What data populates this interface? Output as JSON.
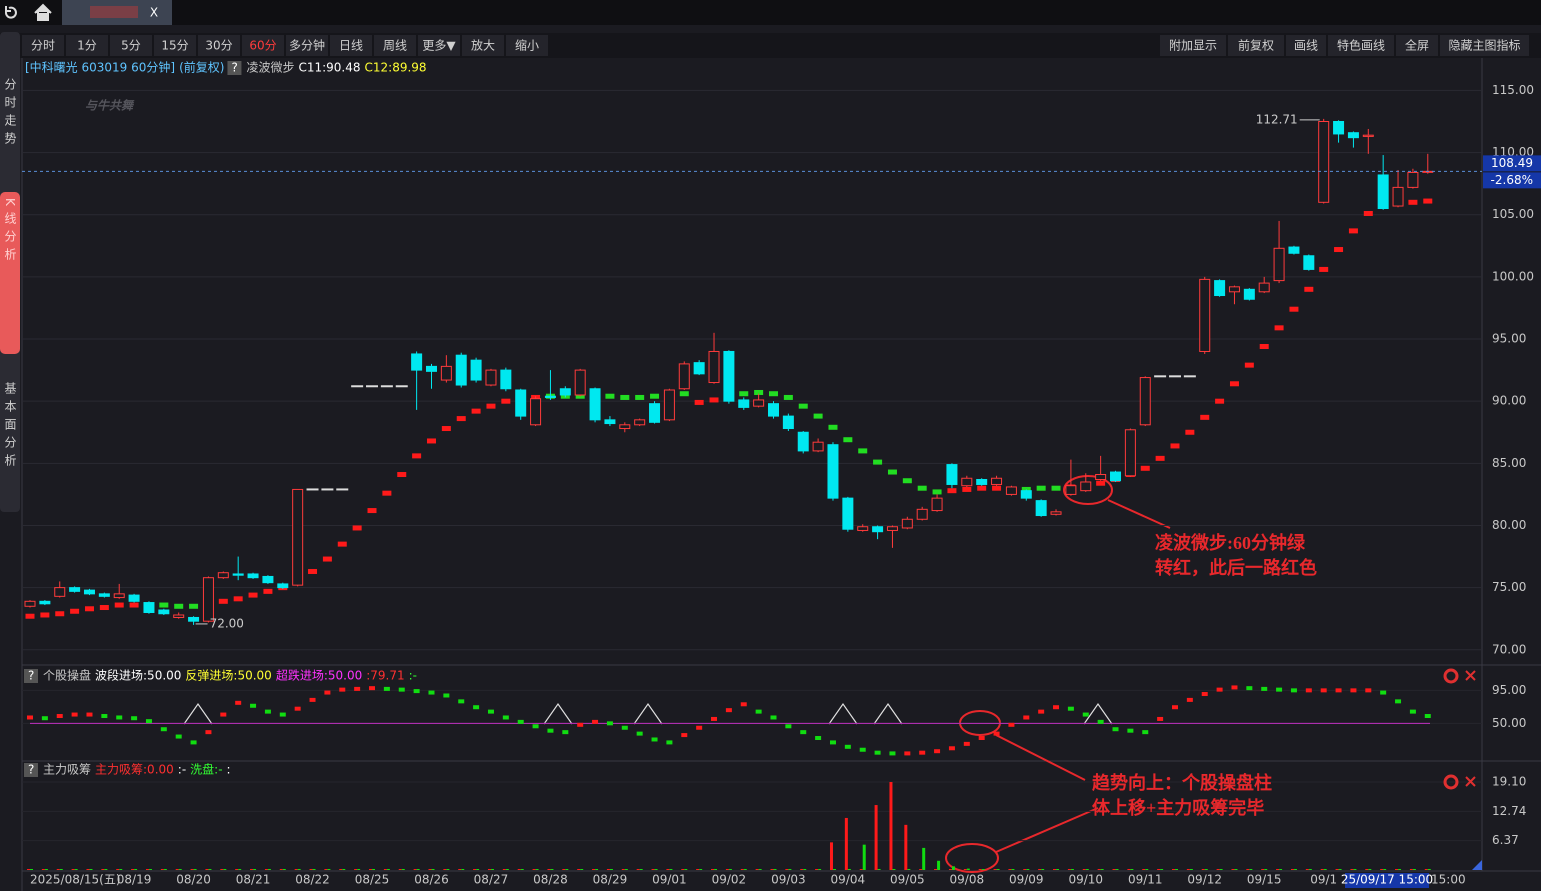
{
  "ui": {
    "tab_close": "X",
    "toolbar_left": [
      "分时",
      "1分",
      "5分",
      "15分",
      "30分",
      "60分",
      "多分钟",
      "日线",
      "周线",
      "更多▼",
      "放大",
      "缩小"
    ],
    "toolbar_active": 5,
    "active_color": "#ff3b3b",
    "toolbar_right": [
      "附加显示",
      "前复权",
      "画线",
      "特色画线",
      "全屏",
      "隐藏主图指标"
    ],
    "sidebar": [
      "分时走势",
      "K线分析",
      "基本面分析"
    ],
    "sidebar_active": 1,
    "logo": "与牛共舞",
    "crosshair_time": "25/09/17 15:00",
    "x_end_label": "15:00"
  },
  "annotations": [
    {
      "lines": [
        "凌波微步:60分钟绿",
        "转红，此后一路红色"
      ]
    },
    {
      "lines": [
        "趋势向上：个股操盘柱",
        "体上移+主力吸筹完毕"
      ]
    }
  ],
  "chart_data": [
    {
      "type": "candlestick",
      "title": "[中科曙光 603019 60分钟]",
      "subtitle": "(前复权)",
      "help": "?",
      "indicator": "凌波微步",
      "indicator_values": [
        {
          "text": "C11:90.48",
          "color": "#ffffff"
        },
        {
          "text": "C12:89.98",
          "color": "#ffff33"
        }
      ],
      "categories": [
        "2025/08/15(五)",
        null,
        null,
        null,
        null,
        null,
        null,
        "08/19",
        null,
        null,
        null,
        "08/20",
        null,
        null,
        null,
        "08/21",
        null,
        null,
        null,
        "08/22",
        null,
        null,
        null,
        "08/25",
        null,
        null,
        null,
        "08/26",
        null,
        null,
        null,
        "08/27",
        null,
        null,
        null,
        "08/28",
        null,
        null,
        null,
        "08/29",
        null,
        null,
        null,
        "09/01",
        null,
        null,
        null,
        "09/02",
        null,
        null,
        null,
        "09/03",
        null,
        null,
        null,
        "09/04",
        null,
        null,
        null,
        "09/05",
        null,
        null,
        null,
        "09/08",
        null,
        null,
        null,
        "09/09",
        null,
        null,
        null,
        "09/10",
        null,
        null,
        null,
        "09/11",
        null,
        null,
        null,
        "09/12",
        null,
        null,
        null,
        "09/15",
        null,
        null,
        null,
        "09/1",
        null,
        null,
        null,
        null,
        null,
        null,
        null
      ],
      "open": [
        73.5,
        73.9,
        74.3,
        75.0,
        74.8,
        74.5,
        74.2,
        74.4,
        73.8,
        73.2,
        72.6,
        72.6,
        72.3,
        75.8,
        76.1,
        76.1,
        75.9,
        75.3,
        75.2,
        82.9,
        82.9,
        82.9,
        91.2,
        91.2,
        91.2,
        91.2,
        93.8,
        92.8,
        91.7,
        93.7,
        93.3,
        91.3,
        92.5,
        90.9,
        88.1,
        90.4,
        91.0,
        90.5,
        91.0,
        88.5,
        87.8,
        88.1,
        89.8,
        88.5,
        91.0,
        93.1,
        91.5,
        94.0,
        90.1,
        89.6,
        89.8,
        88.8,
        87.5,
        86.0,
        86.5,
        82.2,
        79.6,
        79.9,
        79.6,
        79.8,
        80.5,
        81.2,
        84.9,
        83.2,
        83.7,
        83.3,
        82.5,
        82.8,
        82.0,
        80.9,
        82.5,
        82.8,
        83.7,
        84.3,
        84.0,
        88.1,
        92.0,
        92.0,
        92.0,
        94.0,
        99.7,
        98.8,
        99.0,
        98.8,
        99.7,
        102.4,
        101.7,
        106.0,
        112.5,
        111.6,
        111.3,
        108.2,
        105.7,
        107.2,
        108.45
      ],
      "high": [
        74.0,
        74.0,
        75.5,
        75.1,
        74.9,
        74.6,
        75.3,
        74.5,
        73.9,
        73.3,
        73.0,
        72.7,
        75.9,
        76.3,
        77.5,
        76.2,
        76.0,
        75.4,
        82.9,
        82.9,
        82.9,
        82.9,
        91.2,
        91.2,
        91.2,
        91.2,
        94.0,
        93.0,
        93.7,
        93.9,
        93.5,
        92.6,
        92.7,
        91.0,
        90.4,
        92.5,
        91.2,
        92.6,
        91.1,
        88.8,
        88.3,
        88.6,
        90.0,
        91.0,
        93.2,
        93.3,
        95.5,
        94.1,
        90.3,
        90.6,
        90.0,
        89.0,
        87.6,
        87.0,
        86.7,
        82.3,
        80.1,
        80.0,
        80.0,
        80.7,
        81.5,
        82.5,
        85.0,
        84.0,
        83.8,
        84.0,
        83.2,
        82.9,
        82.1,
        81.3,
        85.3,
        84.2,
        85.6,
        84.4,
        87.8,
        92.0,
        92.0,
        92.0,
        92.0,
        100.0,
        99.8,
        99.3,
        99.1,
        100.0,
        104.5,
        102.5,
        101.8,
        112.71,
        112.6,
        111.7,
        111.9,
        109.8,
        108.6,
        108.7,
        109.9
      ],
      "low": [
        73.4,
        73.6,
        74.2,
        74.6,
        74.4,
        74.2,
        74.1,
        73.8,
        72.9,
        72.8,
        72.5,
        72.0,
        72.2,
        75.7,
        75.6,
        75.7,
        75.3,
        74.9,
        75.1,
        82.9,
        82.9,
        82.9,
        91.2,
        91.2,
        91.2,
        91.2,
        89.3,
        91.0,
        91.5,
        91.1,
        91.5,
        91.2,
        90.8,
        88.5,
        88.0,
        90.1,
        90.3,
        90.4,
        88.3,
        88.0,
        87.5,
        88.0,
        88.2,
        88.4,
        90.9,
        92.1,
        91.4,
        89.8,
        89.3,
        89.5,
        88.6,
        87.6,
        85.8,
        85.9,
        82.0,
        79.5,
        79.5,
        78.9,
        78.2,
        79.7,
        80.4,
        81.1,
        83.0,
        83.1,
        83.2,
        83.2,
        82.4,
        82.0,
        80.7,
        80.8,
        82.4,
        82.7,
        83.6,
        83.5,
        83.9,
        88.0,
        92.0,
        92.0,
        92.0,
        93.8,
        98.4,
        97.8,
        98.1,
        98.7,
        99.5,
        101.8,
        100.5,
        105.9,
        110.8,
        110.4,
        109.9,
        105.4,
        105.6,
        107.1,
        108.3
      ],
      "close": [
        73.9,
        73.7,
        75.0,
        74.7,
        74.5,
        74.3,
        74.5,
        73.9,
        73.0,
        72.9,
        72.8,
        72.3,
        75.8,
        76.2,
        76.0,
        75.8,
        75.4,
        75.0,
        82.9,
        82.9,
        82.9,
        82.9,
        91.2,
        91.2,
        91.2,
        91.2,
        92.5,
        92.4,
        92.8,
        91.3,
        91.7,
        92.5,
        91.0,
        88.8,
        90.2,
        90.3,
        90.5,
        92.5,
        88.5,
        88.2,
        88.1,
        88.5,
        88.3,
        90.9,
        93.0,
        92.2,
        94.0,
        90.0,
        89.5,
        90.1,
        88.8,
        87.8,
        86.0,
        86.7,
        82.2,
        79.7,
        79.9,
        79.5,
        79.9,
        80.5,
        81.3,
        82.2,
        83.3,
        83.8,
        83.3,
        83.8,
        83.1,
        82.2,
        80.8,
        81.1,
        83.2,
        83.5,
        84.1,
        83.6,
        87.7,
        91.9,
        92.0,
        92.0,
        92.0,
        99.8,
        98.5,
        99.2,
        98.2,
        99.5,
        102.3,
        101.9,
        100.6,
        112.5,
        111.5,
        111.2,
        111.4,
        105.5,
        107.2,
        108.4,
        108.49
      ],
      "up_color": "#ff3b3b",
      "down_color": "#00e8f0",
      "flat_color": "#dddddd",
      "step_values": [
        72.7,
        72.8,
        72.9,
        73.1,
        73.3,
        73.4,
        73.6,
        73.6,
        73.6,
        73.6,
        73.5,
        73.5,
        73.7,
        73.9,
        74.1,
        74.4,
        74.7,
        75.0,
        75.6,
        76.3,
        77.3,
        78.5,
        79.8,
        81.2,
        82.6,
        84.1,
        85.6,
        86.8,
        87.8,
        88.6,
        89.2,
        89.6,
        90.0,
        90.2,
        90.3,
        90.4,
        90.4,
        90.4,
        90.5,
        90.4,
        90.3,
        90.3,
        90.4,
        90.5,
        90.6,
        89.9,
        90.1,
        90.3,
        90.6,
        90.7,
        90.6,
        90.3,
        89.6,
        88.8,
        87.9,
        86.9,
        86.0,
        85.1,
        84.3,
        83.6,
        83.0,
        82.7,
        82.8,
        82.9,
        83.0,
        83.0,
        82.8,
        82.9,
        83.0,
        83.0,
        83.1,
        83.2,
        83.4,
        83.7,
        84.1,
        84.6,
        85.4,
        86.4,
        87.5,
        88.7,
        90.0,
        91.4,
        92.9,
        94.4,
        95.9,
        97.4,
        99.0,
        100.6,
        102.2,
        103.7,
        105.1,
        105.7,
        105.9,
        106.0,
        106.1
      ],
      "step_colors": [
        "#ff1a1a",
        "#ff1a1a",
        "#ff1a1a",
        "#ff1a1a",
        "#ff1a1a",
        "#ff1a1a",
        "#ff1a1a",
        "#ff1a1a",
        "#22dd22",
        "#22dd22",
        "#22dd22",
        "#22dd22",
        "#ff1a1a",
        "#ff1a1a",
        "#ff1a1a",
        "#ff1a1a",
        "#ff1a1a",
        "#ff1a1a",
        "#ff1a1a",
        "#ff1a1a",
        "#ff1a1a",
        "#ff1a1a",
        "#ff1a1a",
        "#ff1a1a",
        "#ff1a1a",
        "#ff1a1a",
        "#ff1a1a",
        "#ff1a1a",
        "#ff1a1a",
        "#ff1a1a",
        "#ff1a1a",
        "#ff1a1a",
        "#ff1a1a",
        "#ff1a1a",
        "#ff1a1a",
        "#22dd22",
        "#22dd22",
        "#22dd22",
        "#22dd22",
        "#22dd22",
        "#22dd22",
        "#22dd22",
        "#22dd22",
        "#22dd22",
        "#22dd22",
        "#ff1a1a",
        "#ff1a1a",
        "#ff1a1a",
        "#22dd22",
        "#22dd22",
        "#22dd22",
        "#22dd22",
        "#22dd22",
        "#22dd22",
        "#22dd22",
        "#22dd22",
        "#22dd22",
        "#22dd22",
        "#22dd22",
        "#22dd22",
        "#22dd22",
        "#22dd22",
        "#ff1a1a",
        "#ff1a1a",
        "#ff1a1a",
        "#ff1a1a",
        "#ff1a1a",
        "#22dd22",
        "#22dd22",
        "#22dd22",
        "#ff1a1a",
        "#ff1a1a",
        "#ff1a1a",
        "#ff1a1a",
        "#ff1a1a",
        "#ff1a1a",
        "#ff1a1a",
        "#ff1a1a",
        "#ff1a1a",
        "#ff1a1a",
        "#ff1a1a",
        "#ff1a1a",
        "#ff1a1a",
        "#ff1a1a",
        "#ff1a1a",
        "#ff1a1a",
        "#ff1a1a",
        "#ff1a1a",
        "#ff1a1a",
        "#ff1a1a",
        "#ff1a1a",
        "#ff1a1a",
        "#ff1a1a",
        "#ff1a1a",
        "#ff1a1a"
      ],
      "ylim": [
        69.5,
        116
      ],
      "yticks": [
        {
          "value": 70,
          "label": "70.00"
        },
        {
          "value": 75,
          "label": "75.00"
        },
        {
          "value": 80,
          "label": "80.00"
        },
        {
          "value": 85,
          "label": "85.00"
        },
        {
          "value": 90,
          "label": "90.00"
        },
        {
          "value": 95,
          "label": "95.00"
        },
        {
          "value": 100,
          "label": "100.00"
        },
        {
          "value": 105,
          "label": "105.00"
        },
        {
          "value": 110,
          "label": "110.00"
        },
        {
          "value": 115,
          "label": "115.00"
        }
      ],
      "grid": true,
      "high_marker": {
        "value": 112.71,
        "label": "112.71"
      },
      "low_marker": {
        "value": 72.0,
        "label": "72.00"
      },
      "last_price": {
        "value": 108.49,
        "label": "108.49"
      },
      "change_label": "-2.68%"
    },
    {
      "type": "dots",
      "title": "个股操盘",
      "help": "?",
      "legend": [
        {
          "text": "波段进场:50.00",
          "color": "#ffffff"
        },
        {
          "text": "反弹进场:50.00",
          "color": "#ffff33"
        },
        {
          "text": "超跌进场:50.00",
          "color": "#ff33ff"
        },
        {
          "text": ":79.71",
          "color": "#ff3030"
        },
        {
          "text": ":-",
          "color": "#33ff33"
        }
      ],
      "values": [
        58,
        57,
        60,
        62,
        62,
        60,
        58,
        57,
        53,
        42,
        32,
        24,
        38,
        62,
        78,
        74,
        66,
        62,
        70,
        82,
        92,
        96,
        97,
        98,
        97,
        96,
        94,
        92,
        88,
        80,
        72,
        66,
        58,
        52,
        46,
        40,
        38,
        48,
        52,
        50,
        44,
        36,
        28,
        24,
        34,
        44,
        56,
        68,
        76,
        66,
        58,
        46,
        38,
        30,
        24,
        18,
        14,
        10,
        9,
        9,
        10,
        12,
        16,
        22,
        30,
        36,
        48,
        58,
        66,
        72,
        70,
        62,
        52,
        42,
        40,
        38,
        56,
        72,
        82,
        90,
        96,
        99,
        98,
        97,
        96,
        95,
        95,
        95,
        95,
        95,
        95,
        92,
        80,
        66,
        60
      ],
      "up_color": "#ff1a1a",
      "down_color": "#11dd11",
      "ylim": [
        0,
        125.5
      ],
      "yticks": [
        {
          "value": 50,
          "label": "50.00"
        },
        {
          "value": 95,
          "label": "95.00"
        }
      ],
      "ref_line": {
        "value": 50,
        "color": "#c030c0"
      }
    },
    {
      "type": "bars",
      "title": "主力吸筹",
      "help": "?",
      "legend": [
        {
          "text": "主力吸筹:0.00",
          "color": "#ff3030"
        },
        {
          "text": ":-",
          "color": "#ffffff"
        },
        {
          "text": "洗盘:-",
          "color": "#33ff33"
        },
        {
          "text": ":",
          "color": "#ffffff"
        }
      ],
      "red_values": [
        0,
        0,
        0,
        0,
        0,
        0,
        0,
        0,
        0,
        0,
        0,
        0,
        0,
        0,
        0,
        0,
        0,
        0,
        0,
        0,
        0,
        0,
        0,
        0,
        0,
        0,
        0,
        0,
        0,
        0,
        0,
        0,
        0,
        0,
        0,
        0,
        0,
        0,
        0,
        0,
        0,
        0,
        0,
        0,
        0,
        0,
        0,
        0,
        0,
        0,
        0,
        0,
        0,
        0,
        6.0,
        11.3,
        0,
        14.1,
        19.1,
        9.8,
        0,
        0,
        0,
        0,
        0,
        0,
        0,
        0,
        0,
        0,
        0,
        0,
        0,
        0,
        0,
        0,
        0,
        0,
        0,
        0,
        0,
        0,
        0,
        0,
        0,
        0,
        0,
        0,
        0,
        0,
        0,
        0,
        0,
        0,
        0
      ],
      "green_values": [
        0,
        0,
        0,
        0,
        0,
        0,
        0,
        0,
        0,
        0,
        0,
        0,
        0,
        0,
        0,
        0,
        0,
        0,
        0,
        0,
        0,
        0,
        0,
        0,
        0,
        0,
        0,
        0,
        0,
        0,
        0,
        0,
        0,
        0,
        0,
        0,
        0,
        0,
        0,
        0,
        0,
        0,
        0,
        0,
        0,
        0,
        0,
        0,
        0,
        0,
        0,
        0,
        0,
        0,
        0,
        0,
        5.5,
        0,
        0,
        0,
        4.8,
        2.0,
        0.8,
        0.3,
        0,
        0,
        0,
        0,
        0,
        0,
        0,
        0,
        0,
        0,
        0,
        0,
        0,
        0,
        0,
        0,
        0,
        0,
        0,
        0,
        0,
        0,
        0,
        0,
        0,
        0,
        0,
        0,
        0,
        0,
        0
      ],
      "red_color": "#ff1a1a",
      "green_color": "#11dd11",
      "ylim": [
        0,
        20.84
      ],
      "yticks": [
        6.37,
        12.74,
        {
          "value": 19.1,
          "label": "19.10"
        }
      ]
    }
  ]
}
